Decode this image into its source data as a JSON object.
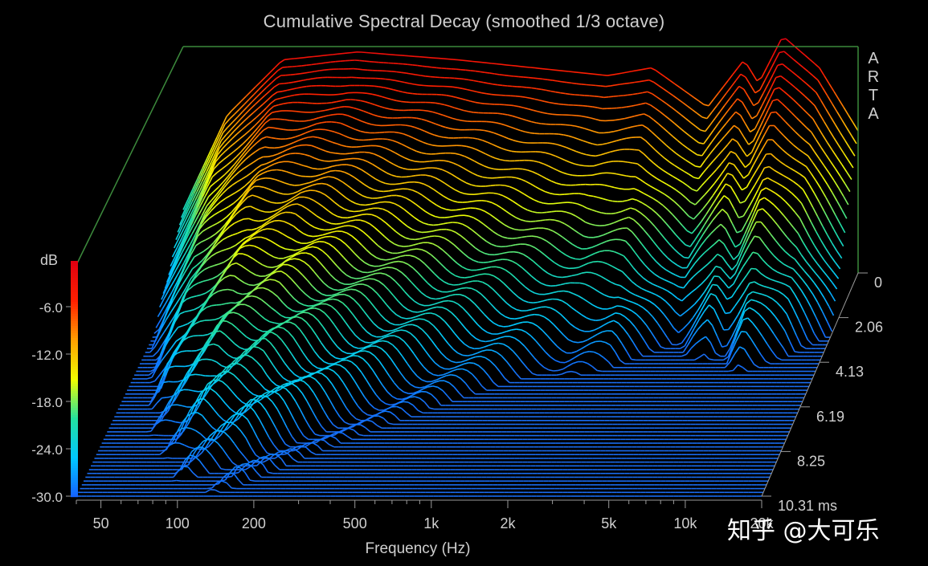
{
  "chart_data": {
    "type": "waterfall",
    "title": "Cumulative Spectral Decay (smoothed 1/3 octave)",
    "xlabel": "Frequency (Hz)",
    "x_scale": "log",
    "xlim": [
      40,
      20000
    ],
    "x_ticks": [
      {
        "value": 50,
        "label": "50"
      },
      {
        "value": 100,
        "label": "100"
      },
      {
        "value": 200,
        "label": "200"
      },
      {
        "value": 500,
        "label": "500"
      },
      {
        "value": 1000,
        "label": "1k"
      },
      {
        "value": 2000,
        "label": "2k"
      },
      {
        "value": 5000,
        "label": "5k"
      },
      {
        "value": 10000,
        "label": "10k"
      },
      {
        "value": 20000,
        "label": "20k"
      }
    ],
    "zlabel": "dB",
    "zlim": [
      -30,
      0
    ],
    "z_ticks": [
      "-6.0",
      "-12.0",
      "-18.0",
      "-24.0",
      "-30.0"
    ],
    "time_unit": "ms",
    "time_ticks": [
      "0",
      "2.06",
      "4.13",
      "6.19",
      "8.25",
      "10.31 ms"
    ],
    "time_range_ms": [
      0,
      10.31
    ],
    "colormap": [
      "#1560ff",
      "#00c8ff",
      "#22e0a0",
      "#f0ff00",
      "#ffa000",
      "#ff2000",
      "#e00010"
    ],
    "noise_floor_color": "#1a6cf0",
    "background": "#000000",
    "grid": false,
    "slice_count": 60,
    "decay_profile": [
      {
        "freq": 40,
        "level_db": -22
      },
      {
        "freq": 60,
        "level_db": -10
      },
      {
        "freq": 100,
        "level_db": -3
      },
      {
        "freq": 200,
        "level_db": -2
      },
      {
        "freq": 500,
        "level_db": -3
      },
      {
        "freq": 1000,
        "level_db": -4
      },
      {
        "freq": 2000,
        "level_db": -5
      },
      {
        "freq": 3000,
        "level_db": -4
      },
      {
        "freq": 5000,
        "level_db": -9
      },
      {
        "freq": 7000,
        "level_db": -3
      },
      {
        "freq": 8000,
        "level_db": -6
      },
      {
        "freq": 10000,
        "level_db": 0
      },
      {
        "freq": 14000,
        "level_db": -4
      },
      {
        "freq": 20000,
        "level_db": -12
      }
    ],
    "watermark_text": "知乎 @大可乐",
    "side_label": "ARTA"
  }
}
